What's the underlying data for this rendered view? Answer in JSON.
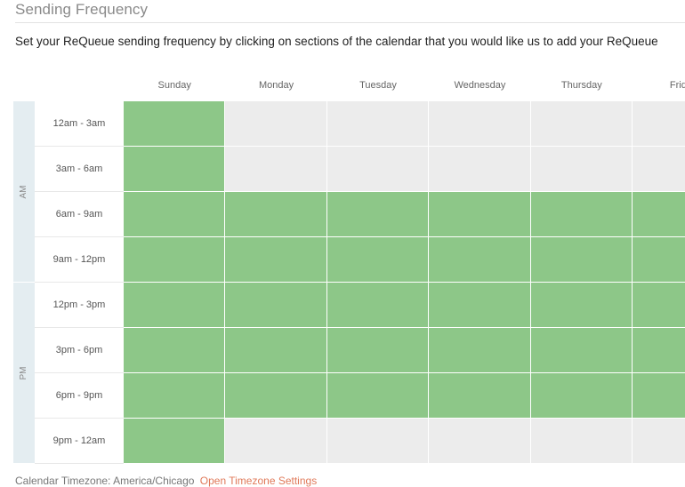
{
  "title": "Sending Frequency",
  "description": "Set your ReQueue sending frequency by clicking on sections of the calendar that you would like us to add your ReQueue",
  "days": [
    "Sunday",
    "Monday",
    "Tuesday",
    "Wednesday",
    "Thursday",
    "Friday"
  ],
  "periods": [
    "AM",
    "PM"
  ],
  "time_slots": [
    "12am - 3am",
    "3am - 6am",
    "6am - 9am",
    "9am - 12pm",
    "12pm - 3pm",
    "3pm - 6pm",
    "6pm - 9pm",
    "9pm - 12am"
  ],
  "schedule": [
    [
      true,
      false,
      false,
      false,
      false,
      false
    ],
    [
      true,
      false,
      false,
      false,
      false,
      false
    ],
    [
      true,
      true,
      true,
      true,
      true,
      true
    ],
    [
      true,
      true,
      true,
      true,
      true,
      true
    ],
    [
      true,
      true,
      true,
      true,
      true,
      true
    ],
    [
      true,
      true,
      true,
      true,
      true,
      true
    ],
    [
      true,
      true,
      true,
      true,
      true,
      true
    ],
    [
      true,
      false,
      false,
      false,
      false,
      false
    ]
  ],
  "footer": {
    "timezone_label": "Calendar Timezone: America/Chicago",
    "timezone_link": "Open Timezone Settings"
  },
  "colors": {
    "selected": "#8dc788",
    "unselected": "#ececec",
    "period_column": "#e4edf1",
    "link": "#e07a5a"
  }
}
